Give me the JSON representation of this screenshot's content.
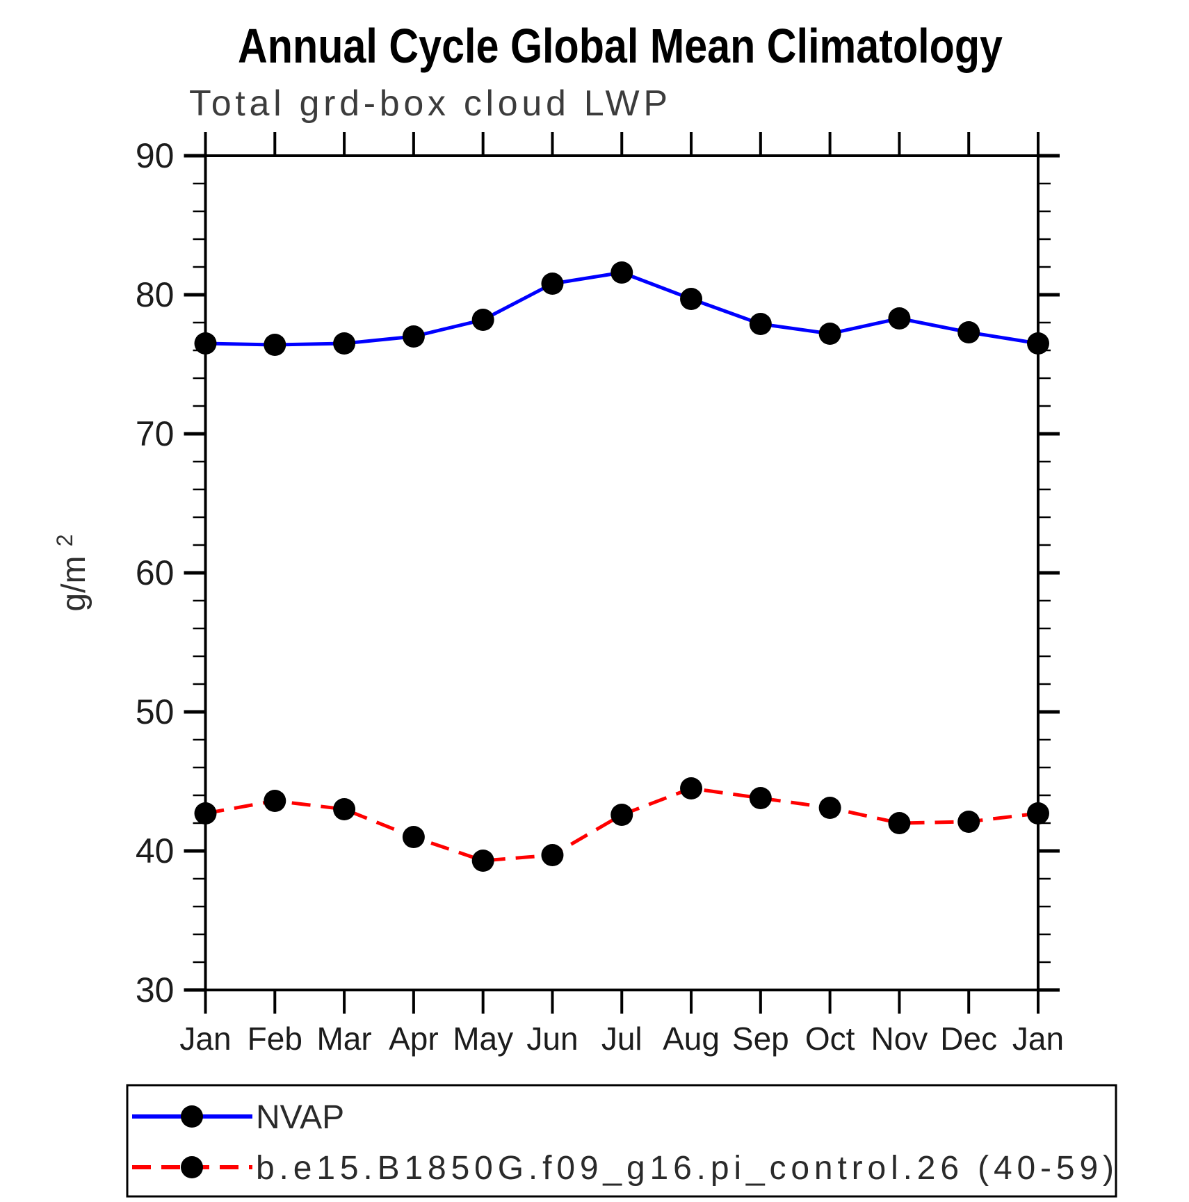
{
  "header": {
    "title": "Annual Cycle Global Mean Climatology",
    "subtitle": "Total grd-box cloud LWP"
  },
  "chart_data": {
    "type": "line",
    "title": "Annual Cycle Global Mean Climatology",
    "subtitle": "Total grd-box cloud LWP",
    "ylabel": "g/m^2",
    "ylabel_base": "g/m",
    "ylabel_sup": "2",
    "x_tick_labels": [
      "Jan",
      "Feb",
      "Mar",
      "Apr",
      "May",
      "Jun",
      "Jul",
      "Aug",
      "Sep",
      "Oct",
      "Nov",
      "Dec",
      "Jan"
    ],
    "y_tick_labels": [
      "30",
      "40",
      "50",
      "60",
      "70",
      "80",
      "90"
    ],
    "ylim": [
      30,
      90
    ],
    "y_major_step": 10,
    "y_minor_step": 2,
    "grid": "off",
    "legend_position": "bottom-left-box",
    "axis_color": "#000000",
    "series": [
      {
        "name": "NVAP",
        "color": "#0000ff",
        "style": "solid",
        "marker": "circle",
        "marker_color": "#000000",
        "values": [
          76.5,
          76.4,
          76.5,
          77.0,
          78.2,
          80.8,
          81.6,
          79.7,
          77.9,
          77.2,
          78.3,
          77.3,
          76.5
        ]
      },
      {
        "name": "b.e15.B1850G.f09_g16.pi_control.26 (40-59)",
        "color": "#ff0000",
        "style": "dashed",
        "marker": "circle",
        "marker_color": "#000000",
        "values": [
          42.7,
          43.6,
          43.0,
          41.0,
          39.3,
          39.7,
          42.6,
          44.5,
          43.8,
          43.1,
          42.0,
          42.1,
          42.7
        ]
      }
    ]
  }
}
